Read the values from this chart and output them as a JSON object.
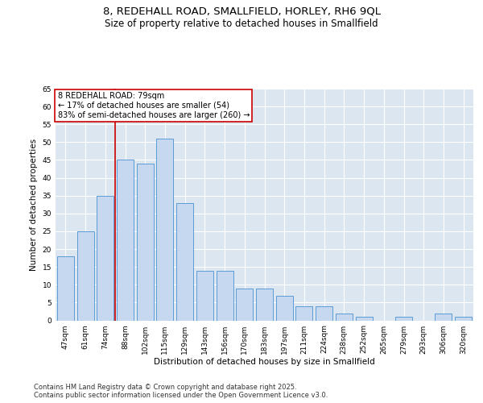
{
  "title_line1": "8, REDEHALL ROAD, SMALLFIELD, HORLEY, RH6 9QL",
  "title_line2": "Size of property relative to detached houses in Smallfield",
  "xlabel": "Distribution of detached houses by size in Smallfield",
  "ylabel": "Number of detached properties",
  "categories": [
    "47sqm",
    "61sqm",
    "74sqm",
    "88sqm",
    "102sqm",
    "115sqm",
    "129sqm",
    "143sqm",
    "156sqm",
    "170sqm",
    "183sqm",
    "197sqm",
    "211sqm",
    "224sqm",
    "238sqm",
    "252sqm",
    "265sqm",
    "279sqm",
    "293sqm",
    "306sqm",
    "320sqm"
  ],
  "values": [
    18,
    25,
    35,
    45,
    44,
    51,
    33,
    14,
    14,
    9,
    9,
    7,
    4,
    4,
    2,
    1,
    0,
    1,
    0,
    2,
    1
  ],
  "bar_color": "#c5d8f0",
  "bar_edge_color": "#5b9bd5",
  "vline_x_index": 2,
  "vline_color": "#cc0000",
  "annotation_text": "8 REDEHALL ROAD: 79sqm\n← 17% of detached houses are smaller (54)\n83% of semi-detached houses are larger (260) →",
  "annotation_box_color": "#ffffff",
  "annotation_box_edge": "#cc0000",
  "ylim": [
    0,
    65
  ],
  "yticks": [
    0,
    5,
    10,
    15,
    20,
    25,
    30,
    35,
    40,
    45,
    50,
    55,
    60,
    65
  ],
  "background_color": "#dce6f1",
  "grid_color": "#ffffff",
  "title_fontsize": 9.5,
  "subtitle_fontsize": 8.5,
  "axis_label_fontsize": 7.5,
  "tick_fontsize": 6.5,
  "annotation_fontsize": 7,
  "footer_fontsize": 6,
  "footer_text": "Contains HM Land Registry data © Crown copyright and database right 2025.\nContains public sector information licensed under the Open Government Licence v3.0."
}
